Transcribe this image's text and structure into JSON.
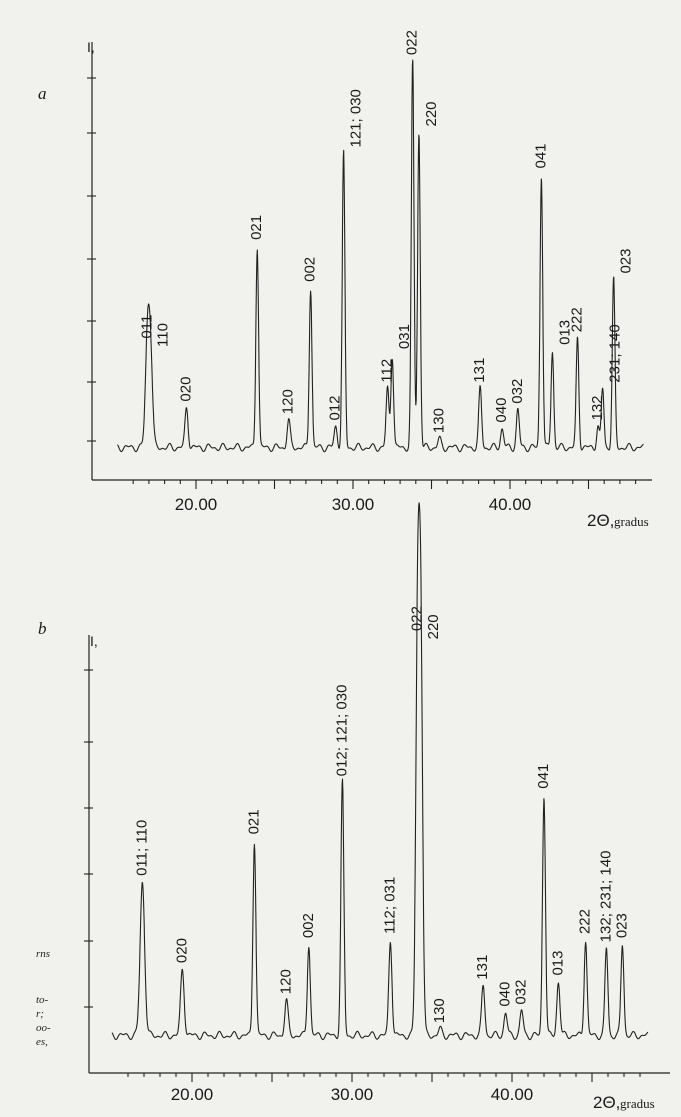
{
  "panels": [
    {
      "letter": "a",
      "ylabel": "I,",
      "xlabel_symbol": "2Θ,",
      "xlabel_unit": "gradus",
      "chart_data": {
        "type": "line",
        "x_ticks": [
          20,
          30,
          40
        ],
        "x_tick_labels": [
          "20.00",
          "30.00",
          "40.00"
        ],
        "xlim": [
          15.0,
          48.5
        ],
        "ylim": [
          0,
          100
        ],
        "background": 2.5,
        "peaks": [
          {
            "x": 16.9,
            "y": 24.5,
            "w": 0.18,
            "label": "011"
          },
          {
            "x": 17.1,
            "y": 22.5,
            "w": 0.18,
            "label": "110"
          },
          {
            "x": 19.4,
            "y": 9.5,
            "w": 0.14,
            "label": "020"
          },
          {
            "x": 23.9,
            "y": 48,
            "w": 0.12,
            "label": "021"
          },
          {
            "x": 25.9,
            "y": 6.5,
            "w": 0.14,
            "label": "120"
          },
          {
            "x": 27.3,
            "y": 38,
            "w": 0.12,
            "label": "002"
          },
          {
            "x": 28.9,
            "y": 5,
            "w": 0.14,
            "label": "012"
          },
          {
            "x": 29.4,
            "y": 70,
            "w": 0.12,
            "label": "121; 030"
          },
          {
            "x": 32.2,
            "y": 14,
            "w": 0.13,
            "label": "112"
          },
          {
            "x": 32.5,
            "y": 22,
            "w": 0.12,
            "label": "031"
          },
          {
            "x": 33.8,
            "y": 92,
            "w": 0.12,
            "label": "022"
          },
          {
            "x": 34.2,
            "y": 75,
            "w": 0.12,
            "label": "220"
          },
          {
            "x": 35.5,
            "y": 2,
            "w": 0.14,
            "label": "130"
          },
          {
            "x": 38.1,
            "y": 14,
            "w": 0.13,
            "label": "131"
          },
          {
            "x": 39.5,
            "y": 4.5,
            "w": 0.14,
            "label": "040"
          },
          {
            "x": 40.5,
            "y": 9,
            "w": 0.13,
            "label": "032"
          },
          {
            "x": 42.0,
            "y": 65,
            "w": 0.12,
            "label": "041"
          },
          {
            "x": 42.7,
            "y": 23,
            "w": 0.12,
            "label": "013"
          },
          {
            "x": 44.3,
            "y": 26,
            "w": 0.12,
            "label": "222"
          },
          {
            "x": 45.6,
            "y": 5,
            "w": 0.12,
            "label": "132"
          },
          {
            "x": 45.9,
            "y": 14,
            "w": 0.12,
            "label": "231; 140"
          },
          {
            "x": 46.6,
            "y": 40,
            "w": 0.12,
            "label": "023"
          }
        ]
      }
    },
    {
      "letter": "b",
      "ylabel": "I,",
      "xlabel_symbol": "2Θ,",
      "xlabel_unit": "gradus",
      "chart_data": {
        "type": "line",
        "x_ticks": [
          20,
          30,
          40
        ],
        "x_tick_labels": [
          "20.00",
          "30.00",
          "40.00"
        ],
        "xlim": [
          15.0,
          48.5
        ],
        "ylim": [
          0,
          100
        ],
        "background": 3.5,
        "peaks": [
          {
            "x": 16.9,
            "y": 37,
            "w": 0.2,
            "label": "011; 110"
          },
          {
            "x": 19.4,
            "y": 16,
            "w": 0.16,
            "label": "020"
          },
          {
            "x": 23.9,
            "y": 47,
            "w": 0.13,
            "label": "021"
          },
          {
            "x": 25.9,
            "y": 8.5,
            "w": 0.15,
            "label": "120"
          },
          {
            "x": 27.3,
            "y": 22,
            "w": 0.13,
            "label": "002"
          },
          {
            "x": 29.4,
            "y": 61,
            "w": 0.13,
            "label": "012; 121; 030"
          },
          {
            "x": 32.4,
            "y": 23,
            "w": 0.14,
            "label": "112; 031"
          },
          {
            "x": 34.1,
            "y": 96,
            "w": 0.16,
            "label": "022"
          },
          {
            "x": 34.3,
            "y": 94,
            "w": 0.16,
            "label": "220"
          },
          {
            "x": 35.5,
            "y": 1.5,
            "w": 0.15,
            "label": "130"
          },
          {
            "x": 38.2,
            "y": 12,
            "w": 0.14,
            "label": "131"
          },
          {
            "x": 39.6,
            "y": 5.5,
            "w": 0.14,
            "label": "040"
          },
          {
            "x": 40.6,
            "y": 6,
            "w": 0.14,
            "label": "032"
          },
          {
            "x": 42.0,
            "y": 58,
            "w": 0.13,
            "label": "041"
          },
          {
            "x": 42.9,
            "y": 13,
            "w": 0.14,
            "label": "013"
          },
          {
            "x": 44.6,
            "y": 23,
            "w": 0.13,
            "label": "222"
          },
          {
            "x": 45.9,
            "y": 21,
            "w": 0.13,
            "label": "132; 231; 140"
          },
          {
            "x": 46.9,
            "y": 22,
            "w": 0.13,
            "label": "023"
          }
        ]
      }
    }
  ],
  "caption_fragments": [
    "rns",
    "to-",
    "r;",
    "oo-",
    "es,"
  ]
}
